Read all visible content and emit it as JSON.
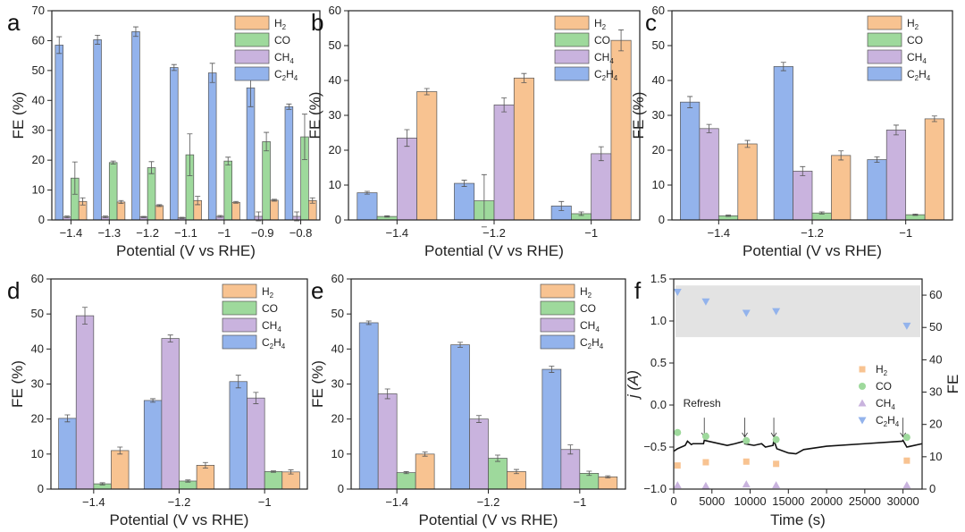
{
  "colors": {
    "H2": "#f8c391",
    "CO": "#9ed99c",
    "CH4": "#c9b3de",
    "C2H4": "#93b3ec",
    "edge": "#333333",
    "line": "#111111",
    "shade": "#e3e3e3"
  },
  "chart_data": [
    {
      "panel": "a",
      "type": "bar",
      "xlabel": "Potential (V vs RHE)",
      "ylabel": "FE (%)",
      "ylim": [
        0,
        70
      ],
      "yticks": [
        0,
        10,
        20,
        30,
        40,
        50,
        60,
        70
      ],
      "categories": [
        "−1.4",
        "−1.3",
        "−1.2",
        "−1.1",
        "−1",
        "−0.9",
        "−0.8"
      ],
      "series": [
        {
          "name": "C2H4",
          "values": [
            58.5,
            60.3,
            63,
            51,
            49.2,
            44.2,
            37.9
          ],
          "errors": [
            2.8,
            1.5,
            1.6,
            1,
            3.2,
            6.3,
            0.9
          ]
        },
        {
          "name": "CH4",
          "values": [
            1,
            1,
            1,
            0.7,
            1.2,
            1.2,
            1.2
          ],
          "errors": [
            0.3,
            0.3,
            0.2,
            0.2,
            0.3,
            1.5,
            1.5
          ]
        },
        {
          "name": "CO",
          "values": [
            14,
            19.2,
            17.5,
            21.8,
            19.7,
            26.2,
            27.8
          ],
          "errors": [
            5.4,
            0.5,
            2,
            7,
            1.3,
            3.1,
            7.6
          ]
        },
        {
          "name": "H2",
          "values": [
            6.2,
            6,
            4.8,
            6.5,
            5.9,
            6.6,
            6.5
          ],
          "errors": [
            1.2,
            0.5,
            0.3,
            1.4,
            0.3,
            0.3,
            0.9
          ]
        }
      ]
    },
    {
      "panel": "b",
      "type": "bar",
      "xlabel": "Potential (V vs RHE)",
      "ylabel": "FE (%)",
      "ylim": [
        0,
        60
      ],
      "yticks": [
        0,
        10,
        20,
        30,
        40,
        50,
        60
      ],
      "categories": [
        "−1.4",
        "−1.2",
        "−1"
      ],
      "series": [
        {
          "name": "C2H4",
          "values": [
            7.8,
            10.5,
            4
          ],
          "errors": [
            0.4,
            0.9,
            1.3
          ]
        },
        {
          "name": "CO",
          "values": [
            1,
            5.5,
            1.8
          ],
          "errors": [
            0.2,
            7.5,
            0.5
          ]
        },
        {
          "name": "CH4",
          "values": [
            23.5,
            33,
            19
          ],
          "errors": [
            2.4,
            2,
            2
          ]
        },
        {
          "name": "H2",
          "values": [
            36.8,
            40.7,
            51.5
          ],
          "errors": [
            0.9,
            1.3,
            3
          ]
        }
      ]
    },
    {
      "panel": "c",
      "type": "bar",
      "xlabel": "Potential (V vs RHE)",
      "ylabel": "FE (%)",
      "ylim": [
        0,
        60
      ],
      "yticks": [
        0,
        10,
        20,
        30,
        40,
        50,
        60
      ],
      "categories": [
        "−1.4",
        "−1.2",
        "−1"
      ],
      "series": [
        {
          "name": "C2H4",
          "values": [
            33.8,
            44,
            17.3
          ],
          "errors": [
            1.6,
            1.2,
            0.8
          ]
        },
        {
          "name": "CH4",
          "values": [
            26.2,
            14,
            25.8
          ],
          "errors": [
            1.2,
            1.3,
            1.4
          ]
        },
        {
          "name": "CO",
          "values": [
            1.2,
            2,
            1.5
          ],
          "errors": [
            0.2,
            0.3,
            0.2
          ]
        },
        {
          "name": "H2",
          "values": [
            21.8,
            18.5,
            29
          ],
          "errors": [
            1,
            1.3,
            0.8
          ]
        }
      ]
    },
    {
      "panel": "d",
      "type": "bar",
      "xlabel": "Potential (V vs RHE)",
      "ylabel": "FE (%)",
      "ylim": [
        0,
        60
      ],
      "yticks": [
        0,
        10,
        20,
        30,
        40,
        50,
        60
      ],
      "categories": [
        "−1.4",
        "−1.2",
        "−1"
      ],
      "series": [
        {
          "name": "C2H4",
          "values": [
            20.2,
            25.3,
            30.7
          ],
          "errors": [
            1,
            0.5,
            1.8
          ]
        },
        {
          "name": "CH4",
          "values": [
            49.5,
            43,
            26
          ],
          "errors": [
            2.4,
            1,
            1.6
          ]
        },
        {
          "name": "CO",
          "values": [
            1.5,
            2.3,
            5
          ],
          "errors": [
            0.3,
            0.3,
            0.2
          ]
        },
        {
          "name": "H2",
          "values": [
            11,
            6.8,
            4.9
          ],
          "errors": [
            1,
            0.8,
            0.6
          ]
        }
      ]
    },
    {
      "panel": "e",
      "type": "bar",
      "xlabel": "Potential (V vs RHE)",
      "ylabel": "FE (%)",
      "ylim": [
        0,
        60
      ],
      "yticks": [
        0,
        10,
        20,
        30,
        40,
        50,
        60
      ],
      "categories": [
        "−1.4",
        "−1.2",
        "−1"
      ],
      "series": [
        {
          "name": "C2H4",
          "values": [
            47.5,
            41.2,
            34.2
          ],
          "errors": [
            0.5,
            0.7,
            0.9
          ]
        },
        {
          "name": "CH4",
          "values": [
            27.2,
            20,
            11.3
          ],
          "errors": [
            1.4,
            1,
            1.3
          ]
        },
        {
          "name": "CO",
          "values": [
            4.7,
            8.8,
            4.5
          ],
          "errors": [
            0.3,
            0.9,
            0.6
          ]
        },
        {
          "name": "H2",
          "values": [
            10,
            5,
            3.5
          ],
          "errors": [
            0.6,
            0.6,
            0.3
          ]
        }
      ]
    },
    {
      "panel": "f",
      "type": "scatter+line",
      "xlabel": "Time (s)",
      "ylabel": "j (A)",
      "y2label": "FE",
      "xlim": [
        0,
        32500
      ],
      "xticks": [
        0,
        5000,
        10000,
        15000,
        20000,
        25000,
        30000
      ],
      "ylim": [
        -1.0,
        1.5
      ],
      "yticks": [
        "−1.0",
        "−0.5",
        "0.0",
        "0.5",
        "1.0",
        "1.5"
      ],
      "ytick_values": [
        -1,
        -0.5,
        0,
        0.5,
        1,
        1.5
      ],
      "y2lim": [
        0,
        65
      ],
      "y2ticks": [
        0,
        10,
        20,
        30,
        40,
        50,
        60
      ],
      "annotation": "Refresh",
      "refresh_times": [
        4000,
        9300,
        13100,
        30000
      ],
      "shaded_fe_range": [
        47,
        63
      ],
      "current": {
        "x": [
          0,
          500,
          1500,
          1800,
          2300,
          2500,
          3900,
          4000,
          4500,
          7000,
          8000,
          9200,
          9300,
          10500,
          11500,
          12000,
          13000,
          13100,
          13500,
          15000,
          16000,
          17000,
          20000,
          25000,
          29900,
          30000,
          30500,
          32500
        ],
        "y": [
          -0.55,
          -0.52,
          -0.48,
          -0.43,
          -0.47,
          -0.46,
          -0.46,
          -0.42,
          -0.43,
          -0.48,
          -0.46,
          -0.43,
          -0.46,
          -0.48,
          -0.46,
          -0.5,
          -0.48,
          -0.42,
          -0.52,
          -0.57,
          -0.58,
          -0.53,
          -0.49,
          -0.46,
          -0.43,
          -0.42,
          -0.5,
          -0.46
        ]
      },
      "fe_times": [
        500,
        4200,
        9500,
        13400,
        30500
      ],
      "series": [
        {
          "name": "H2",
          "marker": "square",
          "values": [
            7.3,
            8.3,
            8.5,
            7.8,
            8.8
          ]
        },
        {
          "name": "CO",
          "marker": "circle",
          "values": [
            17.5,
            16.3,
            15,
            15.3,
            16
          ]
        },
        {
          "name": "CH4",
          "marker": "triangle-up",
          "values": [
            1.2,
            1,
            1.5,
            1.2,
            1.2
          ]
        },
        {
          "name": "C2H4",
          "marker": "triangle-down",
          "values": [
            61,
            58,
            54.5,
            55,
            50.5
          ]
        }
      ]
    }
  ],
  "legend_order": [
    "H2",
    "CO",
    "CH4",
    "C2H4"
  ]
}
